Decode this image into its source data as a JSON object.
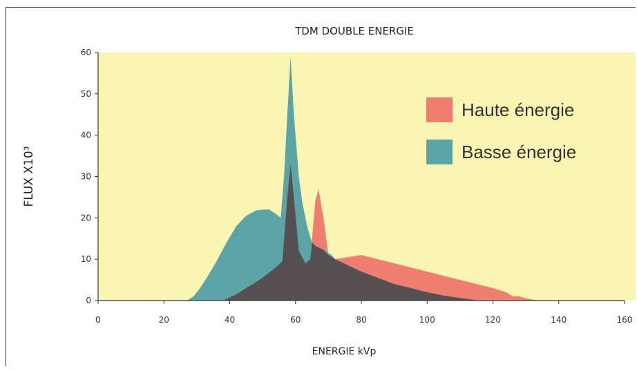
{
  "chart_data": {
    "type": "area",
    "title": "TDM DOUBLE ENERGIE",
    "xlabel": "ENERGIE kVp",
    "ylabel": "FLUX X10³",
    "xlim": [
      0,
      160
    ],
    "ylim": [
      0,
      60
    ],
    "x_ticks": [
      "0",
      "20",
      "40",
      "60",
      "80",
      "100",
      "120",
      "140",
      "160"
    ],
    "y_ticks": [
      "0",
      "10",
      "20",
      "30",
      "40",
      "50",
      "60"
    ],
    "background_color": "#fbf5b4",
    "overlap_color": "#575052",
    "legend_position": "right",
    "series": [
      {
        "name": "Haute énergie",
        "color": "#ee7e6f",
        "points": [
          [
            38,
            0
          ],
          [
            42,
            1.5
          ],
          [
            46,
            3.5
          ],
          [
            50,
            5.5
          ],
          [
            54,
            8
          ],
          [
            56,
            9.5
          ],
          [
            57.5,
            25
          ],
          [
            58.5,
            33
          ],
          [
            59.5,
            25
          ],
          [
            61,
            12
          ],
          [
            63,
            9
          ],
          [
            64.5,
            10
          ],
          [
            66,
            24
          ],
          [
            67,
            27
          ],
          [
            68.5,
            20
          ],
          [
            70,
            11
          ],
          [
            72,
            10
          ],
          [
            76,
            10.5
          ],
          [
            80,
            11
          ],
          [
            85,
            10
          ],
          [
            90,
            9
          ],
          [
            95,
            8
          ],
          [
            100,
            7
          ],
          [
            105,
            6
          ],
          [
            110,
            5
          ],
          [
            115,
            4
          ],
          [
            120,
            3
          ],
          [
            124,
            2
          ],
          [
            126,
            1
          ],
          [
            128,
            1
          ],
          [
            130,
            0.5
          ],
          [
            134,
            0
          ]
        ]
      },
      {
        "name": "Basse énergie",
        "color": "#5ca4a6",
        "points": [
          [
            27,
            0
          ],
          [
            29,
            1
          ],
          [
            31,
            3
          ],
          [
            33,
            5.5
          ],
          [
            36,
            9.5
          ],
          [
            39,
            14
          ],
          [
            42,
            18
          ],
          [
            45,
            20.5
          ],
          [
            48,
            21.8
          ],
          [
            50,
            22
          ],
          [
            52,
            22
          ],
          [
            54,
            21
          ],
          [
            55.5,
            20
          ],
          [
            56.5,
            30
          ],
          [
            57.5,
            45
          ],
          [
            58.5,
            59
          ],
          [
            59.5,
            45
          ],
          [
            61,
            30
          ],
          [
            62,
            24
          ],
          [
            63.5,
            18
          ],
          [
            65,
            14
          ],
          [
            66.5,
            13
          ],
          [
            68,
            12.5
          ],
          [
            70,
            11.5
          ],
          [
            71,
            11
          ],
          [
            72,
            10
          ],
          [
            76,
            8.5
          ],
          [
            80,
            7
          ],
          [
            85,
            5.5
          ],
          [
            90,
            4
          ],
          [
            95,
            3
          ],
          [
            100,
            2
          ],
          [
            105,
            1.2
          ],
          [
            110,
            0.6
          ],
          [
            114,
            0.2
          ],
          [
            116,
            0
          ]
        ]
      }
    ]
  }
}
